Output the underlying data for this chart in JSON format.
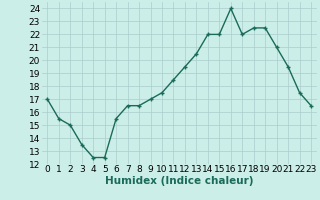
{
  "x": [
    0,
    1,
    2,
    3,
    4,
    5,
    6,
    7,
    8,
    9,
    10,
    11,
    12,
    13,
    14,
    15,
    16,
    17,
    18,
    19,
    20,
    21,
    22,
    23
  ],
  "y": [
    17,
    15.5,
    15,
    13.5,
    12.5,
    12.5,
    15.5,
    16.5,
    16.5,
    17,
    17.5,
    18.5,
    19.5,
    20.5,
    22,
    22,
    24,
    22,
    22.5,
    22.5,
    21,
    19.5,
    17.5,
    16.5
  ],
  "xlim": [
    -0.5,
    23.5
  ],
  "ylim": [
    12,
    24.5
  ],
  "yticks": [
    12,
    13,
    14,
    15,
    16,
    17,
    18,
    19,
    20,
    21,
    22,
    23,
    24
  ],
  "xtick_labels": [
    "0",
    "1",
    "2",
    "3",
    "4",
    "5",
    "6",
    "7",
    "8",
    "9",
    "10",
    "11",
    "12",
    "13",
    "14",
    "15",
    "16",
    "17",
    "18",
    "19",
    "20",
    "21",
    "22",
    "23"
  ],
  "xlabel": "Humidex (Indice chaleur)",
  "line_color": "#1a6b5a",
  "marker": "+",
  "bg_color": "#cceee8",
  "grid_color": "#aacccc",
  "tick_label_fontsize": 6.5,
  "xlabel_fontsize": 7.5
}
